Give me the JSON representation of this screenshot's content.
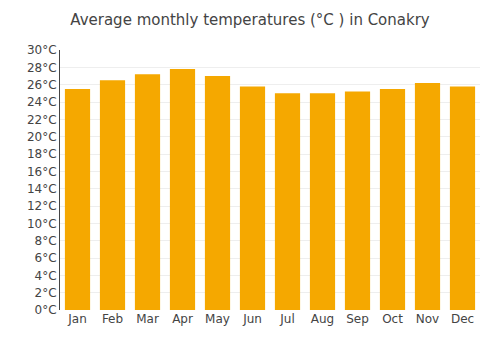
{
  "chart_data": {
    "type": "bar",
    "title": "Average monthly temperatures (°C ) in Conakry",
    "categories": [
      "Jan",
      "Feb",
      "Mar",
      "Apr",
      "May",
      "Jun",
      "Jul",
      "Aug",
      "Sep",
      "Oct",
      "Nov",
      "Dec"
    ],
    "values": [
      25.5,
      26.5,
      27.2,
      27.8,
      27.0,
      25.8,
      25.0,
      25.0,
      25.2,
      25.5,
      26.2,
      25.8
    ],
    "color": "#F5A800",
    "ylim": [
      0,
      30
    ],
    "yticks": [
      {
        "value": 0,
        "label": "0°C"
      },
      {
        "value": 2,
        "label": "2°C"
      },
      {
        "value": 4,
        "label": "4°C"
      },
      {
        "value": 6,
        "label": "6°C"
      },
      {
        "value": 8,
        "label": "8°C"
      },
      {
        "value": 10,
        "label": "10°C"
      },
      {
        "value": 12,
        "label": "12°C"
      },
      {
        "value": 14,
        "label": "14°C"
      },
      {
        "value": 16,
        "label": "16°C"
      },
      {
        "value": 18,
        "label": "18°C"
      },
      {
        "value": 20,
        "label": "20°C"
      },
      {
        "value": 22,
        "label": "22°C"
      },
      {
        "value": 24,
        "label": "24°C"
      },
      {
        "value": 26,
        "label": "26°C"
      },
      {
        "value": 28,
        "label": "28°C"
      },
      {
        "value": 30,
        "label": "30°C"
      }
    ],
    "grid": true
  }
}
